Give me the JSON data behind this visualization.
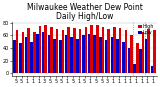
{
  "title": "Milwaukee Weather Dew Point",
  "subtitle": "Daily High/Low",
  "bar_width": 0.45,
  "background_color": "#ffffff",
  "high_color": "#dd0000",
  "low_color": "#0000cc",
  "grid_color": "#bbbbbb",
  "highs": [
    68,
    65,
    72,
    65,
    75,
    76,
    74,
    70,
    68,
    74,
    72,
    70,
    74,
    76,
    76,
    74,
    70,
    74,
    72,
    68,
    60,
    48,
    65,
    70,
    68
  ],
  "lows": [
    52,
    48,
    58,
    50,
    62,
    65,
    60,
    55,
    52,
    60,
    57,
    54,
    60,
    62,
    60,
    57,
    52,
    57,
    55,
    50,
    40,
    15,
    38,
    55,
    12
  ],
  "xlabels": [
    "5",
    "5",
    "1",
    "1",
    "1",
    "3",
    "5",
    "5",
    "5",
    "1",
    "5",
    "1",
    "5",
    "1",
    "5",
    "5",
    "3",
    "1",
    "1",
    "1",
    "1",
    "1",
    "1",
    "1",
    "1"
  ],
  "ylim": [
    -5,
    82
  ],
  "yticks": [
    0,
    20,
    40,
    60,
    80
  ],
  "title_fontsize": 5.5,
  "tick_fontsize": 3.5,
  "legend_fontsize": 3.5,
  "dashed_lines": [
    20.5,
    22.5
  ],
  "legend_labels": [
    "High",
    "Low"
  ],
  "fig_bg": "#000000"
}
